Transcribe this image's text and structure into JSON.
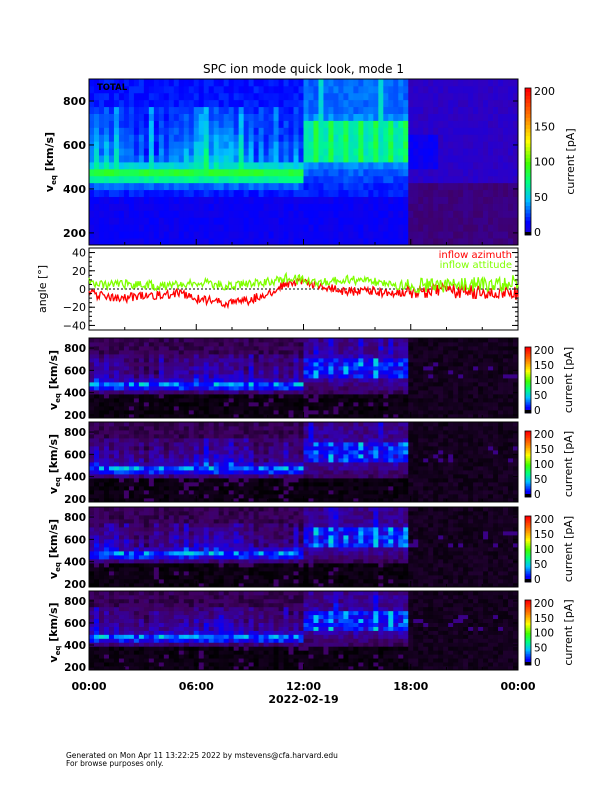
{
  "chart_data": {
    "type": "heatmap",
    "title": "SPC ion mode quick look, mode 1",
    "xlabel": "2022-02-19",
    "xlim_hours": [
      0,
      24
    ],
    "x_ticks": [
      "00:00",
      "06:00",
      "12:00",
      "18:00",
      "00:00"
    ],
    "y_label": {
      "main": "v",
      "sub": "eq",
      "unit": "[km/s]"
    },
    "colorbar": {
      "label": "current [pA]",
      "range": [
        0,
        200
      ],
      "ticks": [
        "0",
        "50",
        "100",
        "150",
        "200"
      ]
    },
    "panels": [
      {
        "label": "TOTAL",
        "ylim": [
          145,
          900
        ],
        "yticks": [
          "200",
          "400",
          "600",
          "800"
        ],
        "features": {
          "band_before_12h_kms": [
            420,
            500
          ],
          "band_after_12h_kms": [
            520,
            720
          ],
          "low_signal_after_hour": 17.75
        }
      },
      {
        "label": "",
        "ylim": [
          173,
          890
        ],
        "yticks": [
          "200",
          "400",
          "600",
          "800"
        ]
      },
      {
        "label": "",
        "ylim": [
          173,
          890
        ],
        "yticks": [
          "200",
          "400",
          "600",
          "800"
        ]
      },
      {
        "label": "",
        "ylim": [
          173,
          890
        ],
        "yticks": [
          "200",
          "400",
          "600",
          "800"
        ]
      },
      {
        "label": "",
        "ylim": [
          173,
          890
        ],
        "yticks": [
          "200",
          "400",
          "600",
          "800"
        ]
      }
    ],
    "angle_panel": {
      "ylabel": "angle [°]",
      "ylim": [
        -45,
        45
      ],
      "yticks": [
        "-40",
        "-20",
        "0",
        "20",
        "40"
      ],
      "series": [
        {
          "name": "inflow azimuth",
          "color": "#ff0000",
          "hours": [
            0,
            1,
            2,
            3,
            4,
            5,
            6,
            7,
            8,
            9,
            10,
            11,
            12,
            13,
            14,
            15,
            16,
            17,
            18,
            19,
            20,
            21,
            22,
            23,
            24
          ],
          "values": [
            -5,
            -8,
            -10,
            -8,
            -6,
            -5,
            -10,
            -14,
            -15,
            -12,
            -5,
            5,
            8,
            3,
            -2,
            -3,
            -2,
            -5,
            -3,
            -2,
            -3,
            -2,
            -4,
            -3,
            -5
          ]
        },
        {
          "name": "inflow attitude",
          "color": "#80ff00",
          "hours": [
            0,
            1,
            2,
            3,
            4,
            5,
            6,
            7,
            8,
            9,
            10,
            11,
            12,
            13,
            14,
            15,
            16,
            17,
            18,
            19,
            20,
            21,
            22,
            23,
            24
          ],
          "values": [
            8,
            5,
            5,
            5,
            3,
            5,
            8,
            5,
            3,
            5,
            8,
            12,
            10,
            8,
            10,
            10,
            8,
            5,
            3,
            5,
            3,
            5,
            5,
            5,
            8
          ]
        }
      ]
    }
  },
  "footer": {
    "line1": "Generated on Mon Apr 11 13:22:25 2022 by mstevens@cfa.harvard.edu",
    "line2": "For browse purposes only."
  }
}
